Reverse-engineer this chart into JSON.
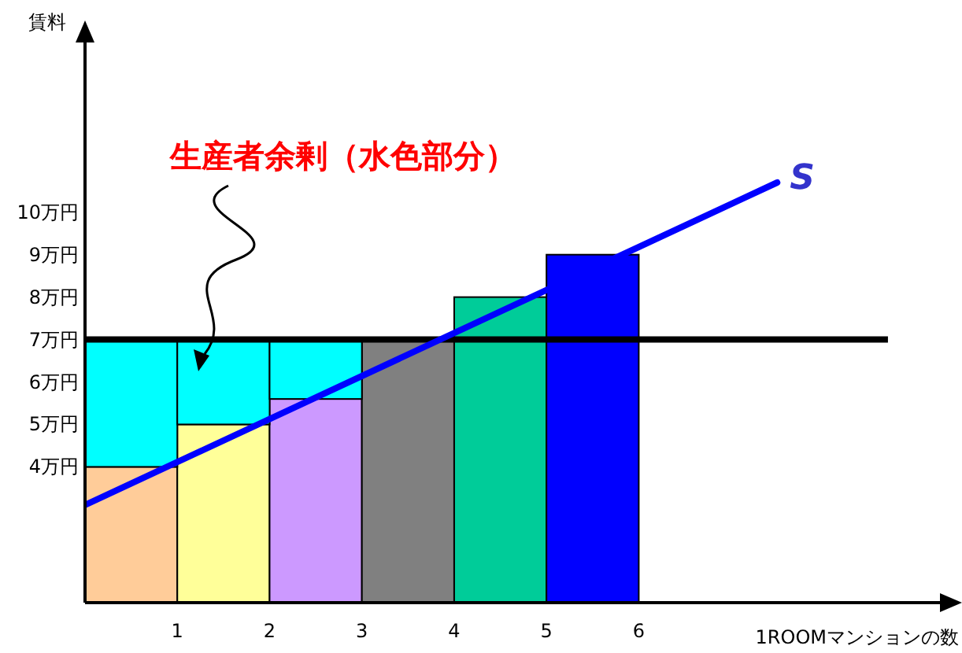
{
  "chart_data": {
    "type": "bar",
    "stacked": true,
    "ylabel": "賃料",
    "xlabel": "1ROOMマンションの数",
    "xlim": [
      0,
      9.4
    ],
    "xticks": [
      1,
      2,
      3,
      4,
      5,
      6
    ],
    "ylim": [
      0.8,
      14
    ],
    "yticks": [
      {
        "value": 4,
        "label": "4万円"
      },
      {
        "value": 5,
        "label": "5万円"
      },
      {
        "value": 6,
        "label": "6万円"
      },
      {
        "value": 7,
        "label": "7万円"
      },
      {
        "value": 8,
        "label": "8万円"
      },
      {
        "value": 9,
        "label": "9万円"
      },
      {
        "value": 10,
        "label": "10万円"
      }
    ],
    "x": [
      0.5,
      1.5,
      2.5,
      3.5,
      4.5,
      5.5
    ],
    "series": [
      {
        "colors": [
          "#ffcc99",
          "#ffff99",
          "#cc99ff",
          "#808080",
          "#00cc99",
          "#0000ff"
        ],
        "values": [
          4,
          5,
          5.6,
          7,
          8,
          9
        ]
      },
      {
        "color": "#00ffff",
        "values": [
          3,
          2,
          1.4,
          null,
          null,
          null
        ]
      },
      {
        "type": "line",
        "color": "#0000ff",
        "x": [
          0,
          7.5
        ],
        "values": [
          3.1,
          10.7
        ]
      }
    ],
    "ref_lines": [
      {
        "axis": "y",
        "value": 7,
        "color": "#000000"
      }
    ],
    "annotations": [
      "S",
      "生産者余剰（水色部分）"
    ],
    "grid": false
  }
}
